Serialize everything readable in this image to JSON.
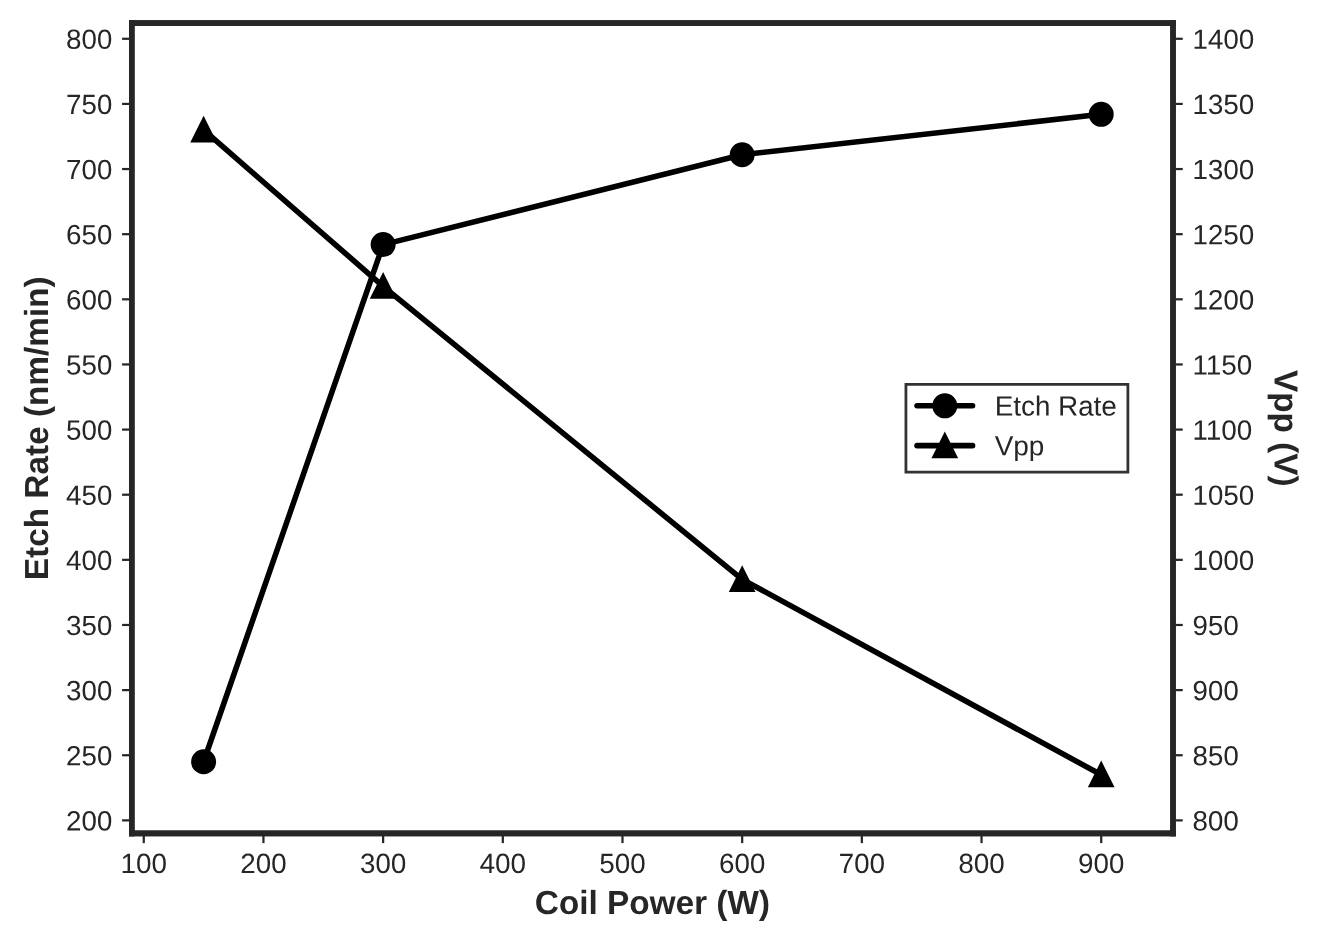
{
  "chart_data": {
    "type": "line",
    "xlabel": "Coil Power (W)",
    "ylabel": "Etch Rate (nm/min)",
    "y2label": "Vpp (V)",
    "x": [
      150,
      300,
      600,
      900
    ],
    "series": [
      {
        "name": "Etch Rate",
        "color": "#000000",
        "marker": "circle",
        "values": [
          245,
          642,
          711,
          742
        ]
      },
      {
        "name": "Vpp",
        "color": "#000000",
        "marker": "triangle",
        "axis": "y2",
        "values": [
          1330,
          1210,
          985,
          835
        ]
      }
    ],
    "xlim": [
      90,
      960
    ],
    "xticks": [
      100,
      200,
      300,
      400,
      500,
      600,
      700,
      800,
      900
    ],
    "ylim": [
      190,
      812
    ],
    "yticks": [
      200,
      250,
      300,
      350,
      400,
      450,
      500,
      550,
      600,
      650,
      700,
      750,
      800
    ],
    "y2lim": [
      790,
      1412
    ],
    "y2ticks": [
      800,
      850,
      900,
      950,
      1000,
      1050,
      1100,
      1150,
      1200,
      1250,
      1300,
      1350,
      1400
    ],
    "grid": false,
    "legend": "right",
    "line_style": "solid"
  }
}
